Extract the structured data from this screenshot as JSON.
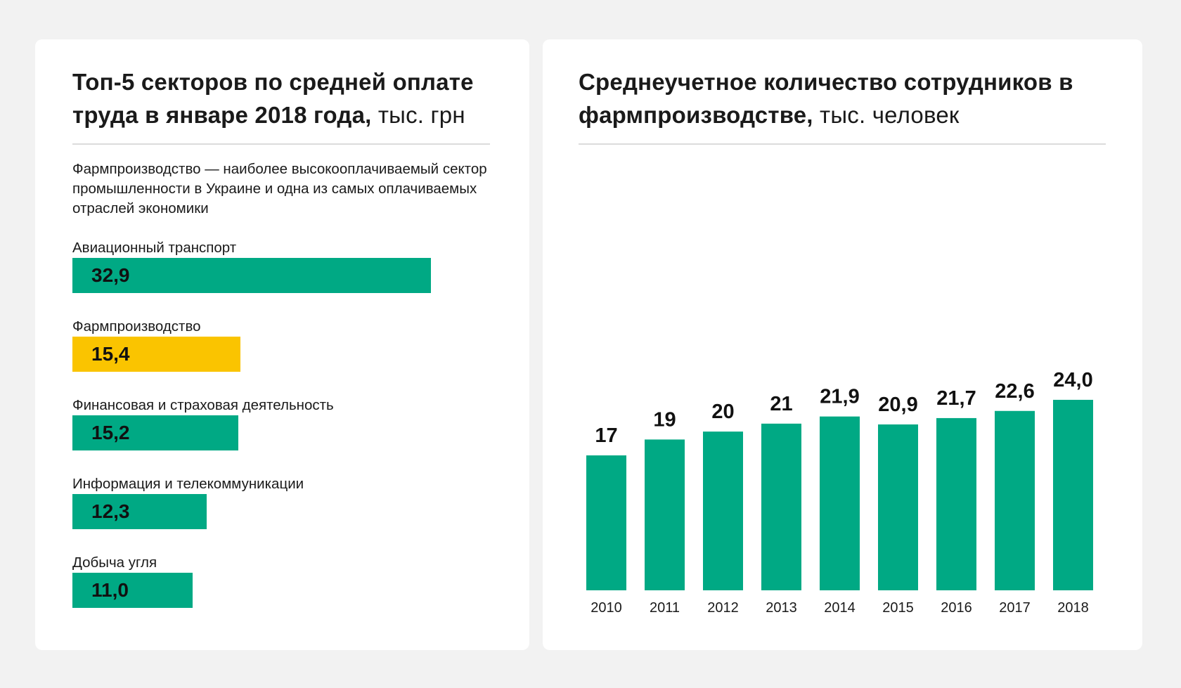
{
  "colors": {
    "green": "#00a984",
    "yellow": "#fac400",
    "card": "#ffffff",
    "background": "#f2f2f2"
  },
  "left": {
    "title_bold": "Топ-5 секторов по средней оплате труда в январе 2018 года,",
    "title_unit": " тыс. грн",
    "description": "Фармпроизводство — наиболее высокооплачиваемый сектор промышленности в Украине и одна из самых оплачиваемых отраслей экономики"
  },
  "right": {
    "title_bold": "Среднеучетное количество сотрудников в фармпроизводстве,",
    "title_unit": " тыс. человек"
  },
  "chart_data": [
    {
      "type": "bar",
      "orientation": "horizontal",
      "title": "Топ-5 секторов по средней оплате труда в январе 2018 года, тыс. грн",
      "categories": [
        "Авиационный транспорт",
        "Фармпроизводство",
        "Финансовая и страховая деятельность",
        "Информация и телекоммуникации",
        "Добыча угля"
      ],
      "values": [
        32.9,
        15.4,
        15.2,
        12.3,
        11.0
      ],
      "value_labels": [
        "32,9",
        "15,4",
        "15,2",
        "12,3",
        "11,0"
      ],
      "highlight_index": 1,
      "bar_colors": [
        "#00a984",
        "#fac400",
        "#00a984",
        "#00a984",
        "#00a984"
      ],
      "grid": false
    },
    {
      "type": "bar",
      "orientation": "vertical",
      "title": "Среднеучетное количество сотрудников в фармпроизводстве, тыс. человек",
      "categories": [
        "2010",
        "2011",
        "2012",
        "2013",
        "2014",
        "2015",
        "2016",
        "2017",
        "2018"
      ],
      "values": [
        17,
        19,
        20,
        21,
        21.9,
        20.9,
        21.7,
        22.6,
        24.0
      ],
      "value_labels": [
        "17",
        "19",
        "20",
        "21",
        "21,9",
        "20,9",
        "21,7",
        "22,6",
        "24,0"
      ],
      "grid": false
    }
  ]
}
